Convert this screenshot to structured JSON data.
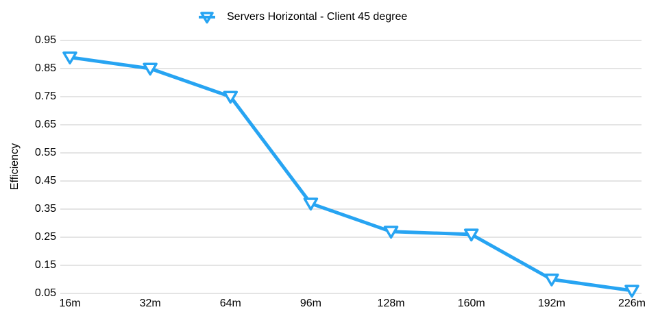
{
  "chart_data": {
    "type": "line",
    "y_label": "Efficiency",
    "categories": [
      "16m",
      "32m",
      "64m",
      "96m",
      "128m",
      "160m",
      "192m",
      "226m"
    ],
    "series": [
      {
        "name": "Servers Horizontal - Client 45 degree",
        "color": "#27a4f2",
        "values": [
          0.89,
          0.85,
          0.75,
          0.37,
          0.27,
          0.26,
          0.1,
          0.06
        ]
      }
    ],
    "ylim": [
      0.05,
      0.95
    ],
    "yticks": [
      0.05,
      0.15,
      0.25,
      0.35,
      0.45,
      0.55,
      0.65,
      0.75,
      0.85,
      0.95
    ],
    "grid": true,
    "legend": "top"
  }
}
